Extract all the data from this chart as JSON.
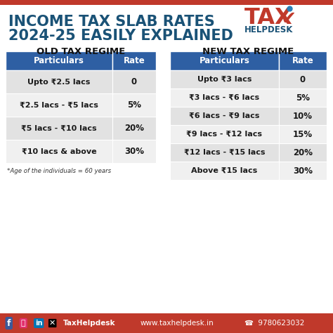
{
  "title_line1": "INCOME TAX SLAB RATES",
  "title_line2": "2024-25 EASILY EXPLAINED",
  "title_color": "#1a5276",
  "title_fontsize": 15,
  "bg_color": "#ffffff",
  "footer_bg": "#c0392b",
  "old_title": "OLD TAX REGIME",
  "new_title": "NEW TAX REGIME",
  "header_bg": "#2e5fa3",
  "header_text_color": "#ffffff",
  "row_bg_light": "#e2e2e2",
  "row_bg_white": "#f0f0f0",
  "row_text_color": "#1a1a1a",
  "old_rows": [
    [
      "Upto ₹2.5 lacs",
      "0"
    ],
    [
      "₹2.5 lacs - ₹5 lacs",
      "5%"
    ],
    [
      "₹5 lacs - ₹10 lacs",
      "20%"
    ],
    [
      "₹10 lacs & above",
      "30%"
    ]
  ],
  "old_note": "*Age of the individuals = 60 years",
  "new_rows": [
    [
      "Upto ₹3 lacs",
      "0"
    ],
    [
      "₹3 lacs - ₹6 lacs",
      "5%"
    ],
    [
      "₹6 lacs - ₹9 lacs",
      "10%"
    ],
    [
      "₹9 lacs - ₹12 lacs",
      "15%"
    ],
    [
      "₹12 lacs - ₹15 lacs",
      "20%"
    ],
    [
      "Above ₹15 lacs",
      "30%"
    ]
  ],
  "footer_items": "f   in      TaxHelpdesk          www.taxhelpdesk.in                    9780623032"
}
